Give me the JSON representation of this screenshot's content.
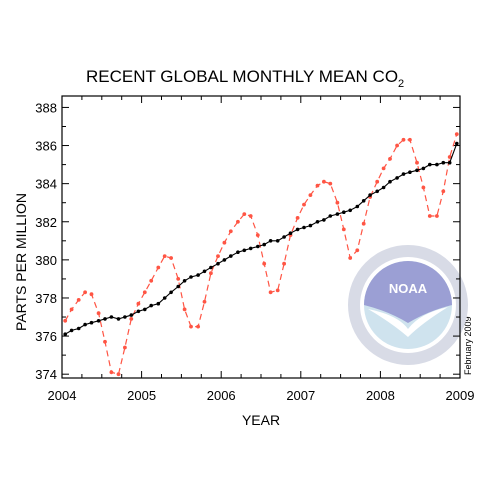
{
  "chart_data": {
    "type": "line",
    "title": "RECENT GLOBAL MONTHLY MEAN CO",
    "title_subscript": "2",
    "xlabel": "YEAR",
    "ylabel": "PARTS PER MILLION",
    "note": "February 2009",
    "xlim": [
      2004,
      2009
    ],
    "ylim": [
      373.8,
      388.6
    ],
    "x_ticks": [
      "2004",
      "2005",
      "2006",
      "2007",
      "2008",
      "2009"
    ],
    "y_ticks": [
      "374",
      "376",
      "378",
      "380",
      "382",
      "384",
      "386",
      "388"
    ],
    "grid": false,
    "x": [
      2004.04,
      2004.12,
      2004.21,
      2004.29,
      2004.37,
      2004.46,
      2004.54,
      2004.62,
      2004.71,
      2004.79,
      2004.87,
      2004.96,
      2005.04,
      2005.12,
      2005.21,
      2005.29,
      2005.37,
      2005.46,
      2005.54,
      2005.62,
      2005.71,
      2005.79,
      2005.87,
      2005.96,
      2006.04,
      2006.12,
      2006.21,
      2006.29,
      2006.37,
      2006.46,
      2006.54,
      2006.62,
      2006.71,
      2006.79,
      2006.87,
      2006.96,
      2007.04,
      2007.12,
      2007.21,
      2007.29,
      2007.37,
      2007.46,
      2007.54,
      2007.62,
      2007.71,
      2007.79,
      2007.87,
      2007.96,
      2008.04,
      2008.12,
      2008.21,
      2008.29,
      2008.37,
      2008.46,
      2008.54,
      2008.62,
      2008.71,
      2008.79,
      2008.87,
      2008.96
    ],
    "series": [
      {
        "style": "dashed-red-dots",
        "color": "#ff5544",
        "values": [
          376.8,
          377.4,
          377.9,
          378.3,
          378.2,
          377.2,
          375.7,
          374.1,
          374.0,
          375.4,
          376.9,
          377.7,
          378.3,
          378.9,
          379.6,
          380.2,
          380.1,
          379.0,
          377.4,
          376.5,
          376.5,
          377.8,
          379.3,
          380.2,
          380.9,
          381.5,
          382.0,
          382.4,
          382.3,
          381.3,
          379.8,
          378.3,
          378.4,
          379.8,
          381.3,
          382.2,
          382.9,
          383.4,
          383.9,
          384.1,
          384.0,
          383.0,
          381.6,
          380.1,
          380.5,
          381.9,
          383.3,
          384.1,
          384.8,
          385.3,
          386.0,
          386.3,
          386.3,
          385.1,
          383.8,
          382.3,
          382.3,
          383.6,
          385.4,
          386.6
        ]
      },
      {
        "style": "solid-black-dots",
        "color": "#000000",
        "values": [
          376.1,
          376.3,
          376.4,
          376.6,
          376.7,
          376.8,
          376.9,
          377.0,
          376.9,
          377.0,
          377.1,
          377.3,
          377.4,
          377.6,
          377.7,
          378.0,
          378.3,
          378.6,
          378.9,
          379.1,
          379.2,
          379.4,
          379.6,
          379.8,
          380.0,
          380.2,
          380.4,
          380.5,
          380.6,
          380.7,
          380.8,
          381.0,
          381.0,
          381.2,
          381.4,
          381.6,
          381.7,
          381.8,
          382.0,
          382.1,
          382.3,
          382.4,
          382.5,
          382.6,
          382.8,
          383.1,
          383.4,
          383.6,
          383.8,
          384.1,
          384.3,
          384.5,
          384.6,
          384.7,
          384.8,
          385.0,
          385.0,
          385.1,
          385.1,
          386.1
        ]
      }
    ]
  },
  "logo": {
    "name": "noaa-logo",
    "text": "NOAA",
    "ring_text": "NATIONAL OCEANIC AND ATMOSPHERIC ADMINISTRATION · U.S. DEPARTMENT OF COMMERCE",
    "colors": {
      "sky": "#9b9fd4",
      "sea": "#cfe3ee",
      "ring": "#d8dbe6"
    }
  }
}
